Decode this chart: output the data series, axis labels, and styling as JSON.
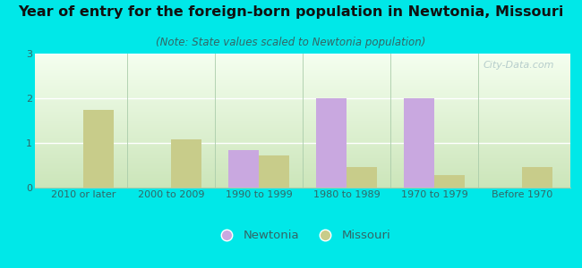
{
  "title": "Year of entry for the foreign-born population in Newtonia, Missouri",
  "subtitle": "(Note: State values scaled to Newtonia population)",
  "categories": [
    "2010 or later",
    "2000 to 2009",
    "1990 to 1999",
    "1980 to 1989",
    "1970 to 1979",
    "Before 1970"
  ],
  "newtonia_values": [
    0,
    0,
    0.85,
    2.0,
    2.0,
    0
  ],
  "missouri_values": [
    1.75,
    1.08,
    0.72,
    0.47,
    0.28,
    0.47
  ],
  "newtonia_color": "#c9a8e0",
  "missouri_color": "#c8cc8a",
  "background_color": "#00e8e8",
  "plot_bg_top": "#f0f8ee",
  "plot_bg_bottom": "#d0e4c0",
  "ylim": [
    0,
    3
  ],
  "yticks": [
    0,
    1,
    2,
    3
  ],
  "bar_width": 0.35,
  "title_fontsize": 11.5,
  "subtitle_fontsize": 8.5,
  "legend_fontsize": 9.5,
  "tick_fontsize": 8,
  "watermark": "City-Data.com"
}
